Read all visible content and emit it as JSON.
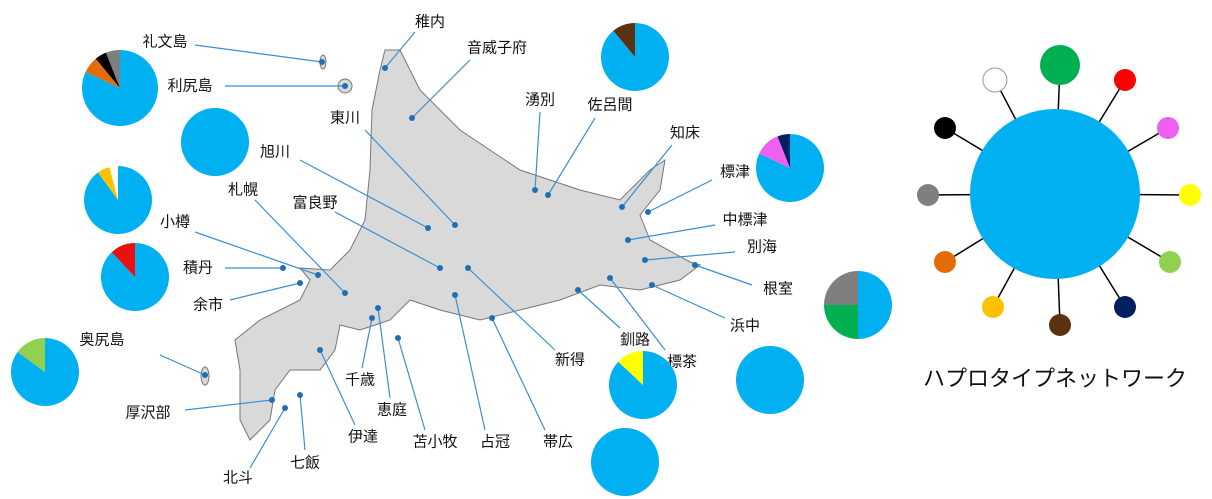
{
  "map": {
    "labels": [
      "礼文島",
      "稚内",
      "音威子府",
      "利尻島",
      "湧別",
      "佐呂間",
      "東川",
      "知床",
      "旭川",
      "標津",
      "札幌",
      "富良野",
      "中標津",
      "小樽",
      "別海",
      "積丹",
      "根室",
      "余市",
      "浜中",
      "奥尻島",
      "釧路",
      "新得",
      "標茶",
      "厚沢部",
      "千歳",
      "恵庭",
      "伊達",
      "苫小牧",
      "占冠",
      "帯広",
      "北斗",
      "七飯"
    ]
  },
  "pies": [
    {
      "slices": [
        {
          "color": "#00b0f0",
          "value": 82
        },
        {
          "color": "#e36c09",
          "value": 7
        },
        {
          "color": "#000000",
          "value": 5
        },
        {
          "color": "#7f7f7f",
          "value": 6
        }
      ]
    },
    {
      "slices": [
        {
          "color": "#00b0f0",
          "value": 100
        }
      ]
    },
    {
      "slices": [
        {
          "color": "#00b0f0",
          "value": 90
        },
        {
          "color": "#ffc000",
          "value": 6
        },
        {
          "color": "#ffffff",
          "value": 4
        }
      ]
    },
    {
      "slices": [
        {
          "color": "#00b0f0",
          "value": 88
        },
        {
          "color": "#e81010",
          "value": 12
        }
      ]
    },
    {
      "slices": [
        {
          "color": "#00b0f0",
          "value": 85
        },
        {
          "color": "#92d050",
          "value": 15
        }
      ]
    },
    {
      "slices": [
        {
          "color": "#00b0f0",
          "value": 89
        },
        {
          "color": "#5a3210",
          "value": 11
        }
      ]
    },
    {
      "slices": [
        {
          "color": "#00b0f0",
          "value": 82
        },
        {
          "color": "#f060f0",
          "value": 12
        },
        {
          "color": "#002060",
          "value": 6
        }
      ]
    },
    {
      "slices": [
        {
          "color": "#00b0f0",
          "value": 50
        },
        {
          "color": "#00b050",
          "value": 25
        },
        {
          "color": "#7f7f7f",
          "value": 25
        }
      ]
    },
    {
      "slices": [
        {
          "color": "#00b0f0",
          "value": 87
        },
        {
          "color": "#ffff00",
          "value": 13
        }
      ]
    },
    {
      "slices": [
        {
          "color": "#00b0f0",
          "value": 100
        }
      ]
    },
    {
      "slices": [
        {
          "color": "#00b0f0",
          "value": 100
        }
      ]
    }
  ],
  "network": {
    "title": "ハプロタイプネットワーク"
  }
}
